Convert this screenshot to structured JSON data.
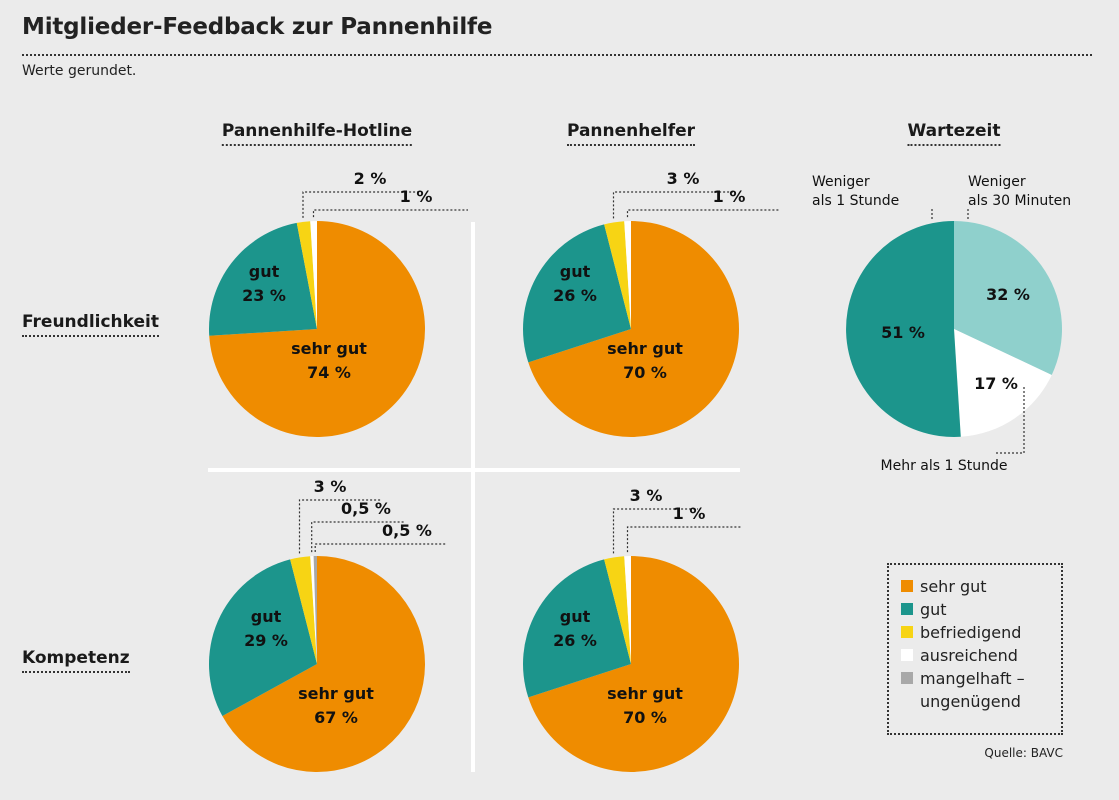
{
  "title": "Mitglieder-Feedback zur Pannenhilfe",
  "subtitle": "Werte gerundet.",
  "source": "Quelle: BAVC",
  "columns": [
    "Pannenhilfe-Hotline",
    "Pannenhelfer",
    "Wartezeit"
  ],
  "rows": [
    "Freundlichkeit",
    "Kompetenz"
  ],
  "colors": {
    "sehr_gut": "#ef8c00",
    "gut": "#1c958c",
    "befriedigend": "#f7d414",
    "ausreichend": "#ffffff",
    "mangelhaft": "#a8a8a8",
    "wartezeit_30": "#8fd0cc"
  },
  "legend": [
    {
      "label": "sehr gut",
      "color": "#ef8c00"
    },
    {
      "label": "gut",
      "color": "#1c958c"
    },
    {
      "label": "befriedigend",
      "color": "#f7d414"
    },
    {
      "label": "ausreichend",
      "color": "#ffffff"
    },
    {
      "label": "mangelhaft – ungenügend",
      "color": "#a8a8a8"
    }
  ],
  "chart_data": [
    {
      "type": "pie",
      "column": "Pannenhilfe-Hotline",
      "row": "Freundlichkeit",
      "slices": [
        {
          "name": "sehr gut",
          "value": 74,
          "label": "74 %",
          "color": "#ef8c00"
        },
        {
          "name": "gut",
          "value": 23,
          "label": "23 %",
          "color": "#1c958c"
        },
        {
          "name": "befriedigend",
          "value": 2,
          "label": "2 %",
          "color": "#f7d414"
        },
        {
          "name": "ausreichend",
          "value": 1,
          "label": "1 %",
          "color": "#ffffff"
        }
      ]
    },
    {
      "type": "pie",
      "column": "Pannenhelfer",
      "row": "Freundlichkeit",
      "slices": [
        {
          "name": "sehr gut",
          "value": 70,
          "label": "70 %",
          "color": "#ef8c00"
        },
        {
          "name": "gut",
          "value": 26,
          "label": "26 %",
          "color": "#1c958c"
        },
        {
          "name": "befriedigend",
          "value": 3,
          "label": "3 %",
          "color": "#f7d414"
        },
        {
          "name": "ausreichend",
          "value": 1,
          "label": "1 %",
          "color": "#ffffff"
        }
      ]
    },
    {
      "type": "pie",
      "column": "Pannenhilfe-Hotline",
      "row": "Kompetenz",
      "slices": [
        {
          "name": "sehr gut",
          "value": 67,
          "label": "67 %",
          "color": "#ef8c00"
        },
        {
          "name": "gut",
          "value": 29,
          "label": "29 %",
          "color": "#1c958c"
        },
        {
          "name": "befriedigend",
          "value": 3,
          "label": "3 %",
          "color": "#f7d414"
        },
        {
          "name": "ausreichend",
          "value": 0.5,
          "label": "0,5 %",
          "color": "#ffffff"
        },
        {
          "name": "mangelhaft – ungenügend",
          "value": 0.5,
          "label": "0,5 %",
          "color": "#a8a8a8"
        }
      ]
    },
    {
      "type": "pie",
      "column": "Pannenhelfer",
      "row": "Kompetenz",
      "slices": [
        {
          "name": "sehr gut",
          "value": 70,
          "label": "70 %",
          "color": "#ef8c00"
        },
        {
          "name": "gut",
          "value": 26,
          "label": "26 %",
          "color": "#1c958c"
        },
        {
          "name": "befriedigend",
          "value": 3,
          "label": "3 %",
          "color": "#f7d414"
        },
        {
          "name": "ausreichend",
          "value": 1,
          "label": "1 %",
          "color": "#ffffff"
        }
      ]
    },
    {
      "type": "pie",
      "column": "Wartezeit",
      "slices": [
        {
          "name": "Weniger als 30 Minuten",
          "value": 32,
          "label": "32 %",
          "color": "#8fd0cc"
        },
        {
          "name": "Mehr als 1 Stunde",
          "value": 17,
          "label": "17 %",
          "color": "#ffffff"
        },
        {
          "name": "Weniger als 1 Stunde",
          "value": 51,
          "label": "51 %",
          "color": "#1c958c"
        }
      ]
    }
  ]
}
